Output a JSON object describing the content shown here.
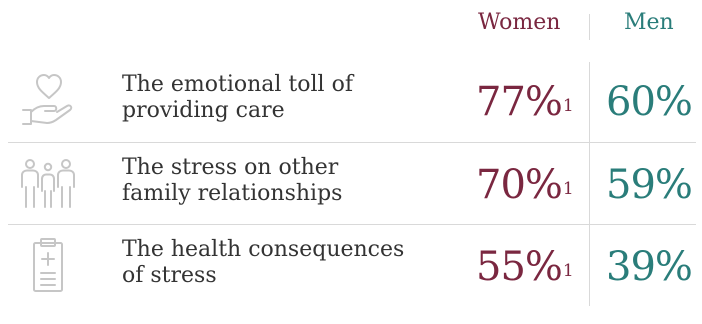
{
  "colors": {
    "women": "#7a2740",
    "men": "#2a7d7a",
    "text": "#333333",
    "icon": "#c6c6c6",
    "divider": "#d9d9d9"
  },
  "chart_data": {
    "type": "table",
    "columns": [
      "Women",
      "Men"
    ],
    "rows": [
      {
        "label_lines": [
          "The emotional toll of",
          "providing care"
        ],
        "icon": "heart-in-hand-icon",
        "women": "77%",
        "women_note": "1",
        "men": "60%"
      },
      {
        "label_lines": [
          "The stress on other",
          "family relationships"
        ],
        "icon": "family-icon",
        "women": "70%",
        "women_note": "1",
        "men": "59%"
      },
      {
        "label_lines": [
          "The health consequences",
          "of stress"
        ],
        "icon": "medical-clipboard-icon",
        "women": "55%",
        "women_note": "1",
        "men": "39%"
      }
    ],
    "series": [
      {
        "name": "Women",
        "values": [
          77,
          70,
          55
        ]
      },
      {
        "name": "Men",
        "values": [
          60,
          59,
          39
        ]
      }
    ]
  }
}
